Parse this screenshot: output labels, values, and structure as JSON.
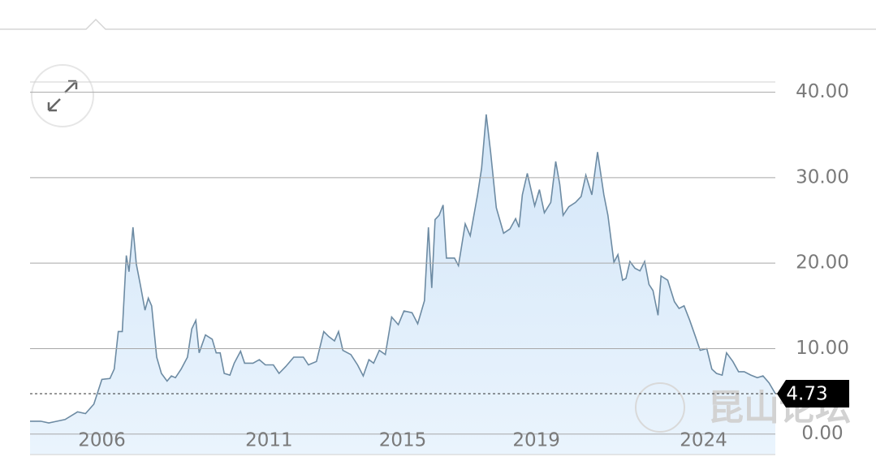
{
  "chart_data": {
    "type": "area",
    "x": [
      2003.85,
      2004.17,
      2004.41,
      2004.66,
      2004.9,
      2005.27,
      2005.51,
      2005.76,
      2006.0,
      2006.24,
      2006.37,
      2006.49,
      2006.61,
      2006.73,
      2006.81,
      2006.93,
      2007.03,
      2007.15,
      2007.29,
      2007.39,
      2007.49,
      2007.64,
      2007.78,
      2007.95,
      2008.08,
      2008.2,
      2008.37,
      2008.56,
      2008.69,
      2008.81,
      2008.91,
      2009.1,
      2009.3,
      2009.42,
      2009.54,
      2009.66,
      2009.83,
      2009.96,
      2010.15,
      2010.27,
      2010.52,
      2010.71,
      2010.89,
      2011.13,
      2011.3,
      2011.5,
      2011.74,
      2012.03,
      2012.18,
      2012.42,
      2012.64,
      2012.79,
      2012.96,
      2013.08,
      2013.21,
      2013.45,
      2013.65,
      2013.82,
      2013.99,
      2014.13,
      2014.3,
      2014.48,
      2014.67,
      2014.87,
      2015.04,
      2015.28,
      2015.45,
      2015.65,
      2015.77,
      2015.87,
      2015.97,
      2016.09,
      2016.21,
      2016.31,
      2016.55,
      2016.67,
      2016.87,
      2017.02,
      2017.24,
      2017.36,
      2017.5,
      2017.63,
      2017.8,
      2018.02,
      2018.21,
      2018.38,
      2018.48,
      2018.58,
      2018.73,
      2018.95,
      2019.09,
      2019.24,
      2019.43,
      2019.58,
      2019.7,
      2019.8,
      2019.97,
      2020.17,
      2020.34,
      2020.48,
      2020.66,
      2020.83,
      2021.02,
      2021.14,
      2021.32,
      2021.44,
      2021.58,
      2021.68,
      2021.8,
      2021.95,
      2022.1,
      2022.24,
      2022.37,
      2022.49,
      2022.64,
      2022.73,
      2022.93,
      2023.13,
      2023.27,
      2023.42,
      2023.59,
      2023.76,
      2023.9,
      2024.1,
      2024.25,
      2024.39,
      2024.56,
      2024.69,
      2024.88,
      2025.05,
      2025.22,
      2025.42,
      2025.61,
      2025.78,
      2025.96,
      2026.15
    ],
    "values": [
      1.5,
      1.5,
      1.3,
      1.5,
      1.7,
      2.6,
      2.4,
      3.5,
      6.4,
      6.5,
      7.6,
      12,
      12,
      20.9,
      19,
      24.2,
      19.9,
      17.5,
      14.5,
      15.9,
      15,
      9,
      7.1,
      6.2,
      6.8,
      6.6,
      7.6,
      9,
      12.3,
      13.3,
      9.5,
      11.6,
      11.1,
      9.5,
      9.5,
      7.1,
      6.9,
      8.3,
      9.7,
      8.3,
      8.3,
      8.7,
      8.1,
      8.1,
      7.1,
      7.9,
      9,
      9,
      8.1,
      8.5,
      12,
      11.4,
      10.9,
      12,
      9.8,
      9.3,
      8.1,
      6.8,
      8.7,
      8.3,
      9.8,
      9.3,
      13.7,
      12.8,
      14.4,
      14.2,
      12.9,
      15.6,
      24.2,
      17.1,
      25.1,
      25.6,
      26.8,
      20.6,
      20.6,
      19.7,
      24.6,
      23.2,
      28,
      31.1,
      37.4,
      33,
      26.5,
      23.5,
      24,
      25.2,
      24.2,
      28,
      30.5,
      26.7,
      28.6,
      25.9,
      27.1,
      31.9,
      29.2,
      25.6,
      26.6,
      27.1,
      27.8,
      30.3,
      28,
      33,
      28,
      25.6,
      20.1,
      21,
      18,
      18.2,
      20.2,
      19.4,
      19.1,
      20.2,
      17.5,
      16.8,
      13.9,
      18.5,
      18,
      15.5,
      14.7,
      15,
      13.3,
      11.4,
      9.8,
      10,
      7.6,
      7.1,
      6.9,
      9.5,
      8.5,
      7.3,
      7.3,
      6.9,
      6.6,
      6.8,
      6,
      4.73
    ],
    "color": "#6d8ba3",
    "fill": "#dcecfa",
    "current_value": 4.73,
    "xlim": [
      2003.85,
      2026.15
    ],
    "xticks": [
      2006,
      2011,
      2015,
      2019,
      2024
    ],
    "ylim": [
      -2.4,
      41.2
    ],
    "yticks": [
      {
        "value": 0,
        "label": "0.00"
      },
      {
        "value": 10,
        "label": "10.00"
      },
      {
        "value": 20,
        "label": "20.00"
      },
      {
        "value": 30,
        "label": "30.00"
      },
      {
        "value": 40,
        "label": "40.00"
      }
    ],
    "grid": true
  },
  "watermark": "昆山论坛"
}
